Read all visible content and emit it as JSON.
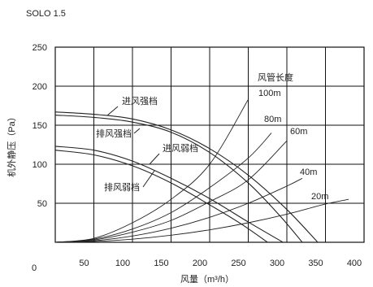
{
  "chart_data": {
    "type": "line",
    "title": "SOLO 1.5",
    "xlabel": "风量（m³/h）",
    "ylabel": "机外静压（Pa）",
    "xlim": [
      0,
      400
    ],
    "ylim": [
      0,
      250
    ],
    "x_ticks": [
      "0",
      "50",
      "100",
      "150",
      "200",
      "250",
      "300",
      "350",
      "400"
    ],
    "y_ticks": [
      "0",
      "50",
      "100",
      "150",
      "200",
      "250"
    ],
    "grid": true,
    "fan_curves": [
      {
        "name": "进风强档",
        "x": [
          0,
          50,
          100,
          150,
          200,
          250,
          300,
          340
        ],
        "y": [
          167,
          164,
          158,
          144,
          120,
          86,
          42,
          0
        ]
      },
      {
        "name": "排风强档",
        "x": [
          0,
          50,
          100,
          150,
          200,
          250,
          290,
          320
        ],
        "y": [
          163,
          160,
          154,
          141,
          115,
          76,
          35,
          0
        ]
      },
      {
        "name": "进风弱档",
        "x": [
          0,
          50,
          100,
          150,
          200,
          250,
          295
        ],
        "y": [
          123,
          118,
          104,
          82,
          56,
          26,
          0
        ]
      },
      {
        "name": "排风弱档",
        "x": [
          0,
          50,
          100,
          150,
          200,
          240,
          275
        ],
        "y": [
          118,
          112,
          98,
          76,
          48,
          24,
          0
        ]
      }
    ],
    "duct_legend_title": "风管长度",
    "duct_curves": [
      {
        "name": "100m",
        "x": [
          0,
          50,
          100,
          150,
          200,
          250
        ],
        "y": [
          0,
          5,
          25,
          55,
          100,
          183
        ]
      },
      {
        "name": "80m",
        "x": [
          0,
          50,
          100,
          150,
          200,
          250,
          280
        ],
        "y": [
          0,
          4,
          17,
          38,
          70,
          108,
          140
        ]
      },
      {
        "name": "60m",
        "x": [
          0,
          50,
          100,
          150,
          200,
          250,
          300
        ],
        "y": [
          0,
          3,
          13,
          28,
          52,
          80,
          130
        ]
      },
      {
        "name": "40m",
        "x": [
          0,
          50,
          100,
          150,
          200,
          250,
          300,
          320
        ],
        "y": [
          0,
          2,
          8,
          18,
          32,
          50,
          72,
          82
        ]
      },
      {
        "name": "20m",
        "x": [
          0,
          50,
          100,
          150,
          200,
          250,
          300,
          350,
          380
        ],
        "y": [
          0,
          1,
          4,
          9,
          16,
          25,
          36,
          49,
          55
        ]
      }
    ],
    "annotations": [
      {
        "text": "进风强档",
        "target": "进风强档"
      },
      {
        "text": "排风强档",
        "target": "排风强档"
      },
      {
        "text": "进风弱档",
        "target": "进风弱档"
      },
      {
        "text": "排风弱档",
        "target": "排风弱档"
      },
      {
        "text": "风管长度",
        "target": "duct_curves"
      }
    ]
  }
}
